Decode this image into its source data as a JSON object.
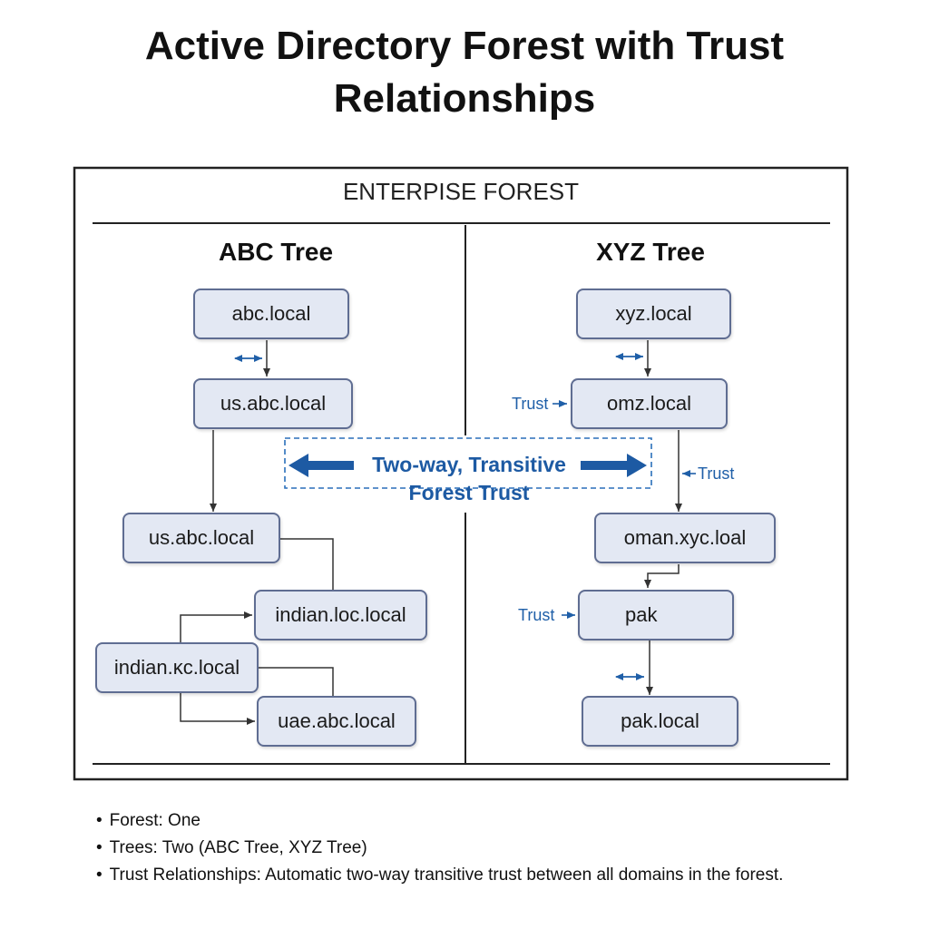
{
  "title": {
    "line1": "Active Directory Forest with Trust",
    "line2": "Relationships"
  },
  "forest": {
    "label": "ENTERPISE FOREST"
  },
  "abc_tree": {
    "heading": "ABC Tree",
    "nodes": [
      "abc.local",
      "us.abc.local",
      "us.abc.local",
      "indian.loc.local",
      "indian.κc.local",
      "uae.abc.local"
    ]
  },
  "xyz_tree": {
    "heading": "XYZ Tree",
    "nodes": [
      "xyz.local",
      "omz.local",
      "oman.xyc.loal",
      "pak",
      "pak.local"
    ],
    "trust_labels": [
      "Trust",
      "Trust",
      "Trust"
    ]
  },
  "forest_trust": {
    "line1": "Two-way, Transitive",
    "line2": "Forest Trust"
  },
  "notes": [
    "Forest: One",
    "Trees: Two (ABC Tree, XYZ Tree)",
    "Trust Relationships: Automatic two-way transitive trust between all domains in the forest."
  ],
  "colors": {
    "accent": "#1f5fa8",
    "node_fill": "#e3e8f3",
    "node_border": "#5f6d92"
  }
}
